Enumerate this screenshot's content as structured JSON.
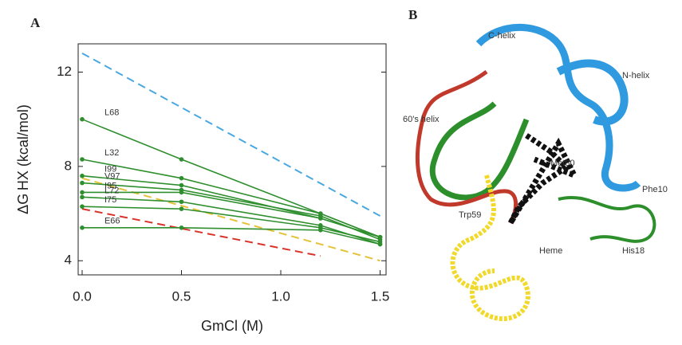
{
  "chart_data": {
    "type": "line",
    "title": "A",
    "x_label": "GmCl (M)",
    "y_label": "ΔG HX (kcal/mol)",
    "xlim": [
      -0.02,
      1.53
    ],
    "ylim": [
      3.4,
      13.2
    ],
    "xticks": [
      {
        "value": 0,
        "label": "0.0"
      },
      0.5,
      {
        "value": 1,
        "label": "1.0"
      },
      1.5
    ],
    "yticks": [
      4,
      8,
      12
    ],
    "series": [
      {
        "color": "#4aa8e0",
        "dash": true,
        "x": [
          0,
          1.5
        ],
        "values": [
          12.8,
          5.9
        ]
      },
      {
        "color": "#e6c23a",
        "dash": true,
        "x": [
          0,
          1.5
        ],
        "values": [
          7.5,
          4.0
        ]
      },
      {
        "color": "#d9342b",
        "dash": true,
        "x": [
          0,
          1.2
        ],
        "values": [
          6.2,
          4.2
        ]
      },
      {
        "name": "L68",
        "color": "#2f8f2f",
        "x": [
          0,
          0.5,
          1.2,
          1.5
        ],
        "values": [
          10.0,
          8.3,
          6.0,
          5.0
        ]
      },
      {
        "name": "L32",
        "color": "#2f8f2f",
        "x": [
          0,
          0.5,
          1.2,
          1.5
        ],
        "values": [
          8.3,
          7.5,
          6.0,
          5.0
        ]
      },
      {
        "name": "I99",
        "color": "#2f8f2f",
        "x": [
          0,
          0.5,
          1.2,
          1.5
        ],
        "values": [
          7.6,
          7.2,
          5.8,
          5.0
        ]
      },
      {
        "name": "V97",
        "color": "#2f8f2f",
        "x": [
          0,
          0.5,
          1.2,
          1.5
        ],
        "values": [
          7.3,
          7.0,
          5.9,
          4.9
        ]
      },
      {
        "name": "I95",
        "color": "#2f8f2f",
        "x": [
          0,
          0.5,
          1.2,
          1.5
        ],
        "values": [
          6.9,
          6.9,
          5.8,
          5.0
        ]
      },
      {
        "name": "L72",
        "color": "#2f8f2f",
        "x": [
          0,
          0.5,
          1.2,
          1.5
        ],
        "values": [
          6.7,
          6.5,
          5.5,
          4.7
        ]
      },
      {
        "name": "I75",
        "color": "#2f8f2f",
        "x": [
          0,
          0.5,
          1.2,
          1.5
        ],
        "values": [
          6.3,
          6.2,
          5.4,
          4.8
        ]
      },
      {
        "name": "E66",
        "color": "#2f8f2f",
        "x": [
          0,
          0.5,
          1.2,
          1.5
        ],
        "values": [
          5.4,
          5.4,
          5.3,
          4.7
        ]
      }
    ]
  },
  "figure_b": {
    "title": "B",
    "labels": [
      "C-helix",
      "N-helix",
      "60's helix",
      "Met80",
      "Trp59",
      "Phe10",
      "His18",
      "Heme"
    ]
  }
}
